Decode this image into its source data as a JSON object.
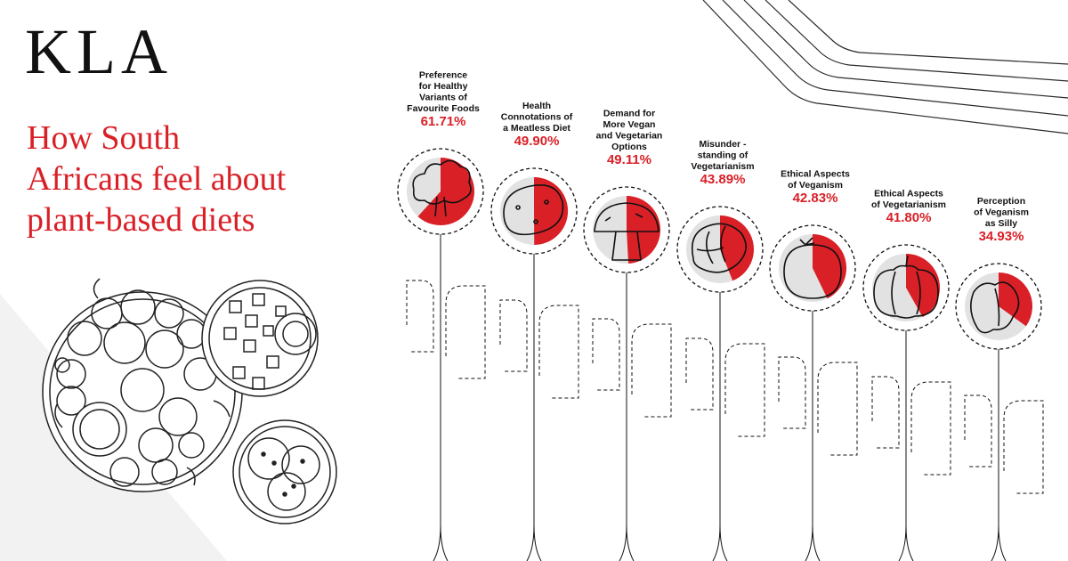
{
  "brand": {
    "logo": "KLA"
  },
  "headline": {
    "lines": [
      "How South",
      "Africans feel about",
      "plant-based diets"
    ]
  },
  "colors": {
    "accent": "#d92027",
    "ink": "#111111",
    "pie_bg": "#e2e2e2"
  },
  "chart_data": {
    "type": "pie",
    "title": "How South Africans feel about plant-based diets",
    "unit": "%",
    "items": [
      {
        "label_lines": [
          "Preference",
          "for Healthy",
          "Variants of",
          "Favourite Foods"
        ],
        "value": 61.71,
        "display": "61.71%",
        "icon": "broccoli-icon"
      },
      {
        "label_lines": [
          "Health",
          "Connotations of",
          "a Meatless Diet"
        ],
        "value": 49.9,
        "display": "49.90%",
        "icon": "potato-icon"
      },
      {
        "label_lines": [
          "Demand for",
          "More Vegan",
          "and Vegetarian",
          "Options"
        ],
        "value": 49.11,
        "display": "49.11%",
        "icon": "mushroom-icon"
      },
      {
        "label_lines": [
          "Misunder -",
          "standing of",
          "Vegetarianism"
        ],
        "value": 43.89,
        "display": "43.89%",
        "icon": "cabbage-icon"
      },
      {
        "label_lines": [
          "Ethical Aspects",
          "of Veganism"
        ],
        "value": 42.83,
        "display": "42.83%",
        "icon": "tomato-icon"
      },
      {
        "label_lines": [
          "Ethical Aspects",
          "of Vegetarianism"
        ],
        "value": 41.8,
        "display": "41.80%",
        "icon": "pumpkin-icon"
      },
      {
        "label_lines": [
          "Perception",
          "of Veganism",
          "as Silly"
        ],
        "value": 34.93,
        "display": "34.93%",
        "icon": "lettuce-icon"
      }
    ]
  }
}
